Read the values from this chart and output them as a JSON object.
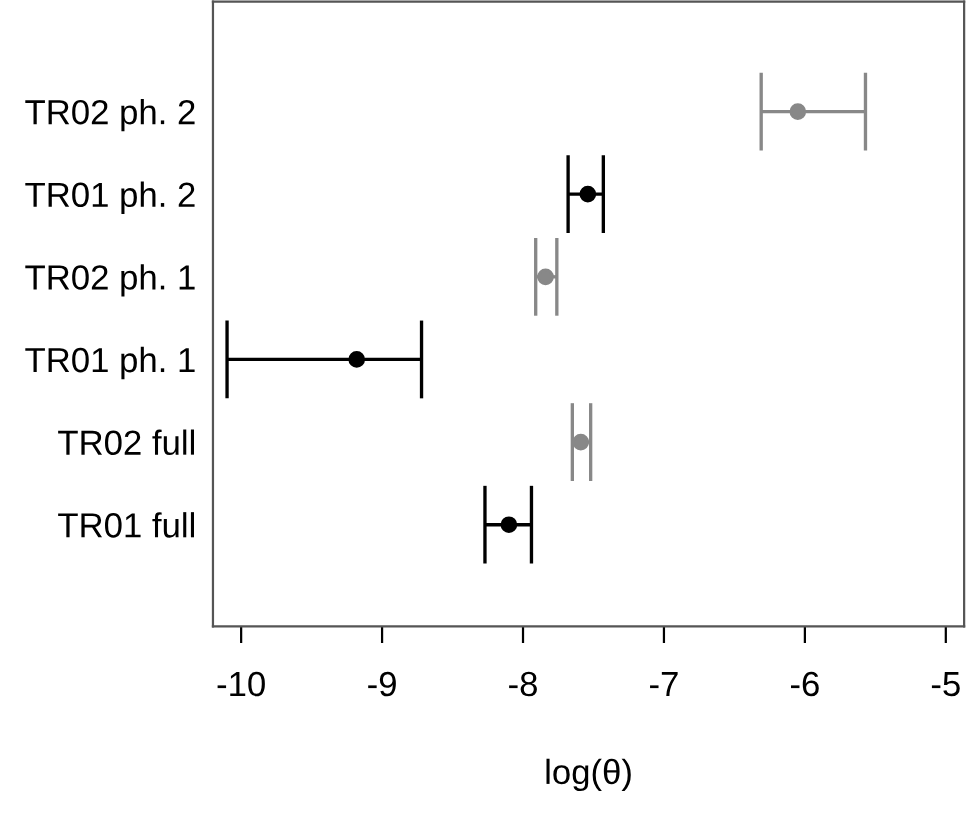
{
  "chart_data": {
    "type": "scatter",
    "orientation": "horizontal",
    "xlabel": "log(θ)",
    "categories": [
      "TR02 ph. 2",
      "TR01 ph. 2",
      "TR02 ph. 1",
      "TR01 ph. 1",
      "TR02 full",
      "TR01 full"
    ],
    "values": [
      -6.05,
      -7.54,
      -7.84,
      -9.18,
      -7.59,
      -8.1
    ],
    "errors": [
      [
        -6.31,
        -5.57
      ],
      [
        -7.68,
        -7.43
      ],
      [
        -7.91,
        -7.76
      ],
      [
        -10.1,
        -8.72
      ],
      [
        -7.65,
        -7.52
      ],
      [
        -8.27,
        -7.94
      ]
    ],
    "colors": [
      "#888888",
      "#000000",
      "#888888",
      "#000000",
      "#888888",
      "#000000"
    ],
    "marker": "circle",
    "xlim": [
      -10.2,
      -4.87
    ],
    "xticks": [
      -10,
      -9,
      -8,
      -7,
      -6,
      -5
    ],
    "grid": false,
    "legend": false
  }
}
